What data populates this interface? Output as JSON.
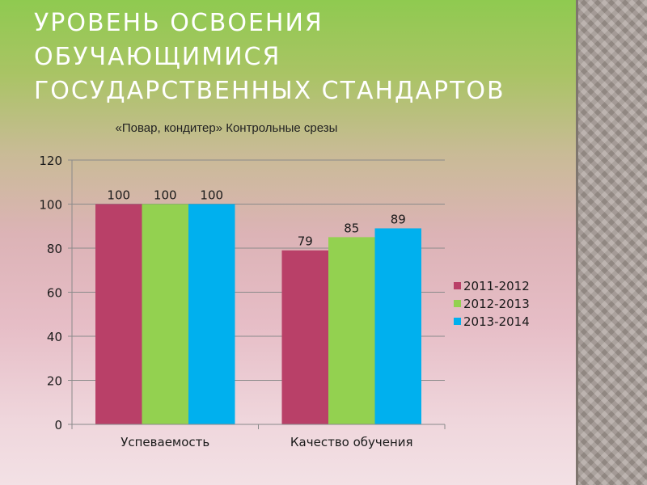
{
  "slide": {
    "title": "Уровень освоения обучающимися государственных стандартов",
    "subtitle": "«Повар, кондитер» Контрольные срезы"
  },
  "colors": {
    "series_2011_2012": "#b94068",
    "series_2012_2013": "#93d150",
    "series_2013_2014": "#00b0ee"
  },
  "chart_data": {
    "type": "bar",
    "categories": [
      "Успеваемость",
      "Качество обучения"
    ],
    "series": [
      {
        "name": "2011-2012",
        "values": [
          100,
          79
        ]
      },
      {
        "name": "2012-2013",
        "values": [
          100,
          85
        ]
      },
      {
        "name": "2013-2014",
        "values": [
          100,
          89
        ]
      }
    ],
    "ylim": [
      0,
      120
    ],
    "yticks": [
      0,
      20,
      40,
      60,
      80,
      100,
      120
    ],
    "grid": true,
    "legend": "right",
    "data_labels": true
  }
}
